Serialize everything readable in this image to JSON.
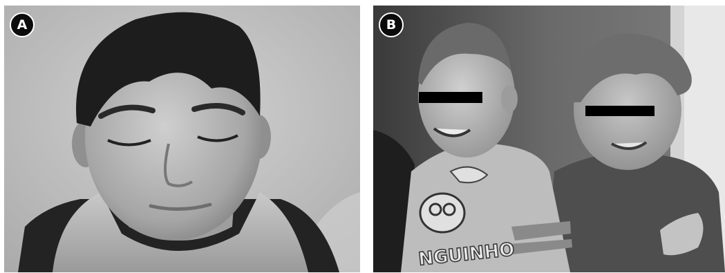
{
  "panels": [
    {
      "label": "A"
    },
    {
      "label": "B"
    }
  ],
  "shirt_print": {
    "left_text": "NGUINHO"
  }
}
